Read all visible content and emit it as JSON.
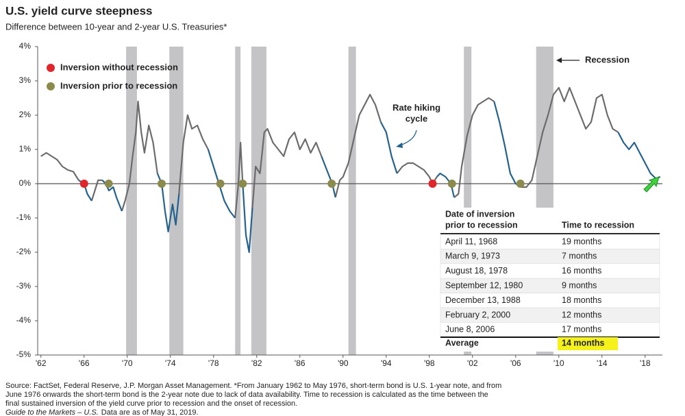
{
  "chart_data": {
    "type": "line",
    "title": "U.S. yield curve steepness",
    "subtitle": "Difference between 10-year and 2-year U.S. Treasuries*",
    "xlim": [
      1961.7,
      2019.6
    ],
    "ylim": [
      -5,
      4
    ],
    "yticks": [
      {
        "value": -5,
        "label": "-5%"
      },
      {
        "value": -4,
        "label": "-4%"
      },
      {
        "value": -3,
        "label": "-3%"
      },
      {
        "value": -2,
        "label": "-2%"
      },
      {
        "value": -1,
        "label": "-1%"
      },
      {
        "value": 0,
        "label": "0%"
      },
      {
        "value": 1,
        "label": "1%"
      },
      {
        "value": 2,
        "label": "2%"
      },
      {
        "value": 3,
        "label": "3%"
      },
      {
        "value": 4,
        "label": "4%"
      }
    ],
    "xticks": [
      {
        "value": 1962,
        "label": "'62"
      },
      {
        "value": 1966,
        "label": "'66"
      },
      {
        "value": 1970,
        "label": "'70"
      },
      {
        "value": 1974,
        "label": "'74"
      },
      {
        "value": 1978,
        "label": "'78"
      },
      {
        "value": 1982,
        "label": "'82"
      },
      {
        "value": 1986,
        "label": "'86"
      },
      {
        "value": 1990,
        "label": "'90"
      },
      {
        "value": 1994,
        "label": "'94"
      },
      {
        "value": 1998,
        "label": "'98"
      },
      {
        "value": 2002,
        "label": "'02"
      },
      {
        "value": 2006,
        "label": "'06"
      },
      {
        "value": 2010,
        "label": "'10"
      },
      {
        "value": 2014,
        "label": "'14"
      },
      {
        "value": 2018,
        "label": "'18"
      }
    ],
    "x": [
      1962.0,
      1962.5,
      1963.0,
      1963.5,
      1964.0,
      1964.5,
      1965.0,
      1965.5,
      1966.0,
      1966.3,
      1966.7,
      1967.0,
      1967.3,
      1967.7,
      1968.0,
      1968.3,
      1968.7,
      1969.0,
      1969.5,
      1969.8,
      1970.2,
      1970.5,
      1970.8,
      1971.0,
      1971.3,
      1971.6,
      1972.0,
      1972.4,
      1972.8,
      1973.2,
      1973.5,
      1973.8,
      1974.2,
      1974.5,
      1974.8,
      1975.2,
      1975.6,
      1976.0,
      1976.5,
      1977.0,
      1977.5,
      1978.0,
      1978.5,
      1979.0,
      1979.5,
      1980.0,
      1980.3,
      1980.5,
      1980.7,
      1981.0,
      1981.3,
      1981.6,
      1981.9,
      1982.3,
      1982.7,
      1983.0,
      1983.5,
      1984.0,
      1984.5,
      1985.0,
      1985.5,
      1986.0,
      1986.5,
      1987.0,
      1987.5,
      1988.0,
      1988.5,
      1989.0,
      1989.3,
      1989.7,
      1990.0,
      1990.5,
      1991.0,
      1991.5,
      1992.0,
      1992.5,
      1993.0,
      1993.5,
      1994.0,
      1994.5,
      1995.0,
      1995.5,
      1996.0,
      1996.5,
      1997.0,
      1997.5,
      1998.0,
      1998.3,
      1998.7,
      1999.0,
      1999.5,
      2000.0,
      2000.3,
      2000.7,
      2001.0,
      2001.5,
      2002.0,
      2002.5,
      2003.0,
      2003.5,
      2004.0,
      2004.5,
      2005.0,
      2005.5,
      2006.0,
      2006.5,
      2007.0,
      2007.5,
      2008.0,
      2008.5,
      2009.0,
      2009.5,
      2010.0,
      2010.5,
      2011.0,
      2011.5,
      2012.0,
      2012.5,
      2013.0,
      2013.5,
      2014.0,
      2014.5,
      2015.0,
      2015.5,
      2016.0,
      2016.5,
      2017.0,
      2017.5,
      2018.0,
      2018.5,
      2019.0,
      2019.4
    ],
    "series": [
      {
        "color": "#6b6b6b",
        "values": [
          0.8,
          0.9,
          0.8,
          0.7,
          0.5,
          0.4,
          0.35,
          0.1,
          null,
          null,
          -0.5,
          -0.2,
          0.1,
          0.1,
          null,
          null,
          null,
          null,
          -0.8,
          -0.5,
          0.0,
          0.8,
          1.5,
          2.4,
          1.5,
          0.9,
          1.7,
          1.2,
          0.3,
          null,
          null,
          null,
          null,
          null,
          -0.3,
          1.2,
          2.0,
          1.6,
          1.7,
          1.3,
          1.0,
          null,
          null,
          null,
          null,
          -1.0,
          0.0,
          1.2,
          0.0,
          null,
          null,
          -0.7,
          0.5,
          0.3,
          1.5,
          1.6,
          1.2,
          1.0,
          0.8,
          1.3,
          1.5,
          1.0,
          1.3,
          0.9,
          1.2,
          0.8,
          null,
          null,
          -0.4,
          0.1,
          0.2,
          0.6,
          1.3,
          2.0,
          2.3,
          2.6,
          2.3,
          1.8,
          null,
          null,
          0.3,
          0.5,
          0.6,
          0.6,
          0.5,
          0.4,
          0.2,
          0.0,
          0.2,
          null,
          null,
          null,
          -0.4,
          -0.3,
          0.5,
          1.4,
          2.0,
          2.3,
          2.4,
          2.5,
          2.4,
          null,
          null,
          null,
          null,
          -0.1,
          -0.1,
          0.1,
          0.8,
          1.5,
          2.0,
          2.6,
          2.8,
          2.4,
          2.8,
          2.4,
          2.0,
          1.6,
          1.8,
          2.5,
          2.6,
          2.0,
          1.6,
          1.5,
          null,
          null,
          null,
          null,
          null,
          null,
          null,
          null
        ]
      },
      {
        "color": "#23628f",
        "values": [
          null,
          null,
          null,
          null,
          null,
          null,
          null,
          0.1,
          0.0,
          -0.3,
          -0.5,
          null,
          null,
          0.1,
          0.0,
          -0.2,
          -0.1,
          -0.4,
          -0.8,
          null,
          null,
          null,
          null,
          null,
          null,
          null,
          null,
          null,
          0.3,
          0.0,
          -0.8,
          -1.4,
          -0.6,
          -1.2,
          -0.3,
          null,
          null,
          null,
          null,
          null,
          1.0,
          0.5,
          0.0,
          -0.5,
          -0.8,
          -1.0,
          null,
          null,
          0.0,
          -1.5,
          -2.0,
          -0.7,
          null,
          null,
          null,
          null,
          null,
          null,
          null,
          null,
          null,
          null,
          null,
          null,
          null,
          0.8,
          0.4,
          0.0,
          -0.4,
          null,
          null,
          null,
          null,
          null,
          null,
          null,
          null,
          1.8,
          1.5,
          0.8,
          0.3,
          null,
          null,
          null,
          null,
          null,
          null,
          null,
          0.2,
          0.3,
          0.2,
          0.0,
          -0.4,
          null,
          null,
          null,
          null,
          null,
          null,
          null,
          2.4,
          1.8,
          1.1,
          0.3,
          0.0,
          -0.1,
          null,
          null,
          null,
          null,
          null,
          null,
          null,
          null,
          null,
          null,
          null,
          null,
          null,
          null,
          null,
          null,
          null,
          1.5,
          1.2,
          1.0,
          1.2,
          0.9,
          0.6,
          0.3,
          0.15,
          0.2
        ]
      }
    ],
    "annotation": [
      "Rate hiking",
      "cycle"
    ],
    "recession_label": "Recession",
    "recessions": [
      [
        1969.9,
        1970.9
      ],
      [
        1973.9,
        1975.2
      ],
      [
        1980.0,
        1980.5
      ],
      [
        1981.5,
        1982.9
      ],
      [
        1990.5,
        1991.2
      ],
      [
        2001.2,
        2001.9
      ],
      [
        2007.9,
        2009.5
      ]
    ],
    "points": [
      {
        "name": "Inversion without recession",
        "color": "#e0262b",
        "x": [
          1966.0,
          1998.3
        ],
        "values": [
          0,
          0
        ]
      },
      {
        "name": "Inversion prior to recession",
        "color": "#8c8a4c",
        "x": [
          1968.28,
          1973.19,
          1978.63,
          1980.7,
          1988.95,
          2000.09,
          2006.44
        ],
        "values": [
          0,
          0,
          0,
          0,
          0,
          0,
          0
        ]
      }
    ],
    "table": {
      "header": [
        [
          "Date of inversion",
          "prior to recession"
        ],
        "Time to recession"
      ],
      "rows": [
        [
          "April 11, 1968",
          "19 months"
        ],
        [
          "March 9, 1973",
          "7 months"
        ],
        [
          "August 18, 1978",
          "16 months"
        ],
        [
          "September 12, 1980",
          "9 months"
        ],
        [
          "December 13, 1988",
          "18 months"
        ],
        [
          "February 2, 2000",
          "12 months"
        ],
        [
          "June 8, 2006",
          "17 months"
        ]
      ],
      "footer": [
        "Average",
        "14 months"
      ]
    },
    "footnote": [
      "Source: FactSet, Federal Reserve, J.P. Morgan Asset Management. *From January 1962 to May 1976, short-term bond is U.S. 1-year note, and from",
      "June 1976 onwards the short-term bond is the 2-year note due to lack of data availability. Time to recession is calculated as the time between the",
      "final sustained inversion of the yield curve prior to recession and the onset of recession."
    ],
    "guide": "Guide to the Markets – U.S.",
    "as_of": "Data are as of May 31, 2019."
  }
}
